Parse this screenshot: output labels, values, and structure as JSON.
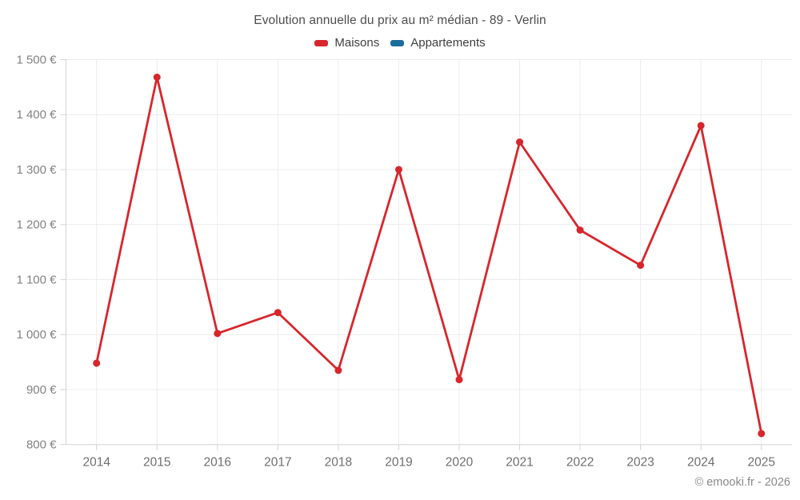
{
  "title": "Evolution annuelle du prix au m² médian - 89 - Verlin",
  "legend": {
    "items": [
      {
        "label": "Maisons",
        "color": "#d8262c"
      },
      {
        "label": "Appartements",
        "color": "#1a6e9c"
      }
    ]
  },
  "footer": {
    "copyright": "© emooki.fr - 2026"
  },
  "chart_data": {
    "type": "line",
    "title": "Evolution annuelle du prix au m² médian - 89 - Verlin",
    "categories": [
      "2014",
      "2015",
      "2016",
      "2017",
      "2018",
      "2019",
      "2020",
      "2021",
      "2022",
      "2023",
      "2024",
      "2025"
    ],
    "series": [
      {
        "name": "Maisons",
        "color": "#d8262c",
        "values": [
          948,
          1468,
          1002,
          1040,
          935,
          1300,
          918,
          1350,
          1190,
          1126,
          1380,
          820
        ]
      },
      {
        "name": "Appartements",
        "color": "#1a6e9c",
        "values": []
      }
    ],
    "xlabel": "",
    "ylabel": "",
    "ylim": [
      800,
      1500
    ],
    "ytick_step": 100,
    "ytick_labels": [
      "800 €",
      "900 €",
      "1 000 €",
      "1 100 €",
      "1 200 €",
      "1 300 €",
      "1 400 €",
      "1 500 €"
    ],
    "grid": true,
    "legend_position": "top",
    "currency": "€"
  }
}
